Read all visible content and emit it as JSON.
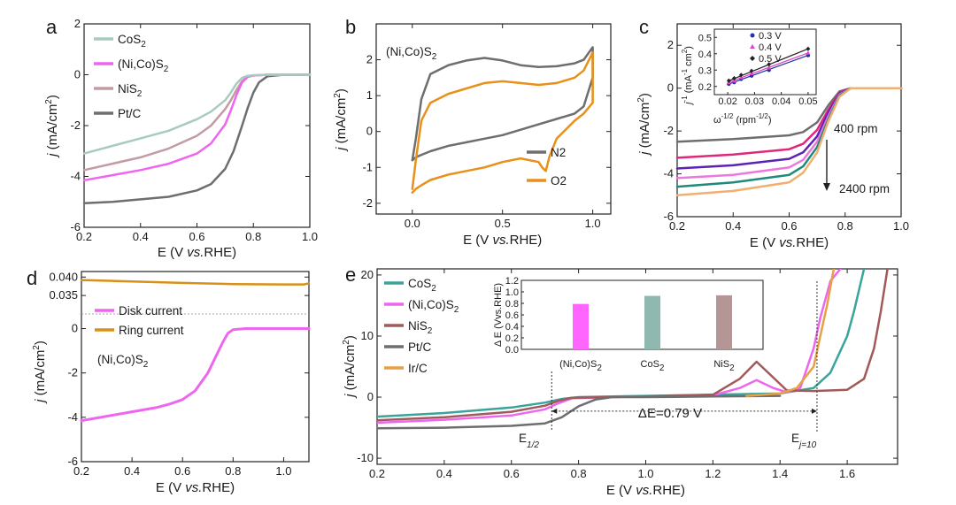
{
  "chart_data": [
    {
      "panel": "a",
      "type": "line",
      "xlabel": "E (V vs.RHE)",
      "ylabel": "j (mA/cm2)",
      "xlim": [
        0.2,
        1.0
      ],
      "ylim": [
        -6,
        2
      ],
      "xticks": [
        "0.2",
        "0.4",
        "0.6",
        "0.8",
        "1.0"
      ],
      "yticks": [
        "-6",
        "-4",
        "-2",
        "0",
        "2"
      ],
      "legend_position": "top-left",
      "series": [
        {
          "name": "CoS2",
          "color": "#a9cbbf",
          "x": [
            0.2,
            0.3,
            0.4,
            0.5,
            0.6,
            0.65,
            0.7,
            0.72,
            0.74,
            0.76,
            0.78,
            0.8,
            0.85,
            0.9,
            1.0
          ],
          "y": [
            -3.1,
            -2.8,
            -2.5,
            -2.2,
            -1.75,
            -1.45,
            -1.0,
            -0.7,
            -0.35,
            -0.12,
            -0.04,
            -0.02,
            0,
            0,
            0
          ]
        },
        {
          "name": "(Ni,Co)S2",
          "color": "#ee66ee",
          "x": [
            0.2,
            0.3,
            0.4,
            0.5,
            0.6,
            0.65,
            0.7,
            0.72,
            0.74,
            0.76,
            0.78,
            0.8,
            0.85,
            0.9,
            1.0
          ],
          "y": [
            -4.15,
            -3.95,
            -3.75,
            -3.5,
            -3.1,
            -2.7,
            -1.95,
            -1.4,
            -0.8,
            -0.3,
            -0.08,
            -0.03,
            0,
            0,
            0
          ]
        },
        {
          "name": "NiS2",
          "color": "#c49ba3",
          "x": [
            0.2,
            0.3,
            0.4,
            0.5,
            0.6,
            0.65,
            0.7,
            0.72,
            0.74,
            0.76,
            0.78,
            0.8,
            0.85,
            0.9,
            1.0
          ],
          "y": [
            -3.75,
            -3.5,
            -3.25,
            -2.9,
            -2.4,
            -2.0,
            -1.35,
            -1.0,
            -0.6,
            -0.25,
            -0.08,
            -0.03,
            0,
            0,
            0
          ]
        },
        {
          "name": "Pt/C",
          "color": "#6e6e6e",
          "x": [
            0.2,
            0.3,
            0.4,
            0.5,
            0.6,
            0.65,
            0.7,
            0.73,
            0.76,
            0.78,
            0.8,
            0.82,
            0.85,
            0.9,
            0.95,
            1.0
          ],
          "y": [
            -5.05,
            -5.0,
            -4.9,
            -4.8,
            -4.55,
            -4.3,
            -3.7,
            -3.0,
            -2.0,
            -1.3,
            -0.7,
            -0.3,
            -0.06,
            -0.01,
            0,
            0
          ]
        }
      ]
    },
    {
      "panel": "b",
      "type": "line",
      "annotation": "(Ni,Co)S2",
      "xlabel": "E (V vs.RHE)",
      "ylabel": "j (mA/cm2)",
      "xlim": [
        -0.2,
        1.1
      ],
      "ylim": [
        -2.3,
        3
      ],
      "xticks": [
        "0.0",
        "0.5",
        "1.0"
      ],
      "yticks": [
        "-2",
        "-1",
        "0",
        "1",
        "2"
      ],
      "legend_position": "bottom-right",
      "series": [
        {
          "name": "N2",
          "color": "#6e6e6e",
          "x": [
            0.0,
            0.02,
            0.05,
            0.1,
            0.2,
            0.3,
            0.4,
            0.5,
            0.6,
            0.7,
            0.8,
            0.9,
            0.95,
            1.0,
            1.0,
            0.95,
            0.9,
            0.8,
            0.7,
            0.6,
            0.5,
            0.4,
            0.3,
            0.2,
            0.1,
            0.05,
            0.02,
            0.0
          ],
          "y": [
            -0.8,
            -0.2,
            0.9,
            1.6,
            1.85,
            1.98,
            2.05,
            1.98,
            1.85,
            1.8,
            1.82,
            1.9,
            2.0,
            2.35,
            1.5,
            0.7,
            0.5,
            0.35,
            0.2,
            0.05,
            -0.1,
            -0.2,
            -0.3,
            -0.4,
            -0.55,
            -0.65,
            -0.72,
            -0.8
          ]
        },
        {
          "name": "O2",
          "color": "#e8901a",
          "x": [
            0.0,
            0.02,
            0.05,
            0.1,
            0.2,
            0.3,
            0.4,
            0.5,
            0.6,
            0.7,
            0.8,
            0.9,
            0.95,
            1.0,
            1.0,
            0.95,
            0.9,
            0.8,
            0.76,
            0.74,
            0.72,
            0.7,
            0.6,
            0.5,
            0.4,
            0.3,
            0.2,
            0.1,
            0.05,
            0.02,
            0.0
          ],
          "y": [
            -1.6,
            -0.8,
            0.3,
            0.8,
            1.05,
            1.2,
            1.35,
            1.4,
            1.35,
            1.3,
            1.35,
            1.5,
            1.7,
            2.2,
            0.8,
            0.5,
            0.3,
            -0.2,
            -0.7,
            -1.1,
            -1.0,
            -0.85,
            -0.75,
            -0.85,
            -1.0,
            -1.1,
            -1.2,
            -1.35,
            -1.5,
            -1.6,
            -1.7
          ]
        }
      ]
    },
    {
      "panel": "c",
      "type": "line",
      "xlabel": "E (V vs.RHE)",
      "ylabel": "j (mA/cm2)",
      "xlim": [
        0.2,
        1.0
      ],
      "ylim": [
        -6,
        3
      ],
      "xticks": [
        "0.2",
        "0.4",
        "0.6",
        "0.8",
        "1.0"
      ],
      "yticks": [
        "-6",
        "-4",
        "-2",
        "0",
        "2"
      ],
      "annotations": [
        "400 rpm",
        "2400 rpm"
      ],
      "series": [
        {
          "color": "#6e6e6e",
          "x": [
            0.2,
            0.4,
            0.6,
            0.65,
            0.7,
            0.74,
            0.78,
            0.82,
            0.9,
            1.0
          ],
          "y": [
            -2.5,
            -2.38,
            -2.2,
            -2.05,
            -1.6,
            -0.8,
            -0.15,
            0,
            0,
            0
          ]
        },
        {
          "color": "#e0287a",
          "x": [
            0.2,
            0.4,
            0.6,
            0.65,
            0.7,
            0.74,
            0.78,
            0.82,
            0.9,
            1.0
          ],
          "y": [
            -3.25,
            -3.1,
            -2.85,
            -2.6,
            -1.95,
            -1.0,
            -0.2,
            0,
            0,
            0
          ]
        },
        {
          "color": "#5a22b5",
          "x": [
            0.2,
            0.4,
            0.6,
            0.65,
            0.7,
            0.74,
            0.78,
            0.82,
            0.9,
            1.0
          ],
          "y": [
            -3.75,
            -3.6,
            -3.3,
            -3.0,
            -2.25,
            -1.15,
            -0.25,
            0,
            0,
            0
          ]
        },
        {
          "color": "#ee77dd",
          "x": [
            0.2,
            0.4,
            0.6,
            0.65,
            0.7,
            0.74,
            0.78,
            0.82,
            0.9,
            1.0
          ],
          "y": [
            -4.2,
            -4.05,
            -3.7,
            -3.35,
            -2.5,
            -1.3,
            -0.3,
            0,
            0,
            0
          ]
        },
        {
          "color": "#1e8a7a",
          "x": [
            0.2,
            0.4,
            0.6,
            0.65,
            0.7,
            0.74,
            0.78,
            0.82,
            0.9,
            1.0
          ],
          "y": [
            -4.6,
            -4.4,
            -4.05,
            -3.65,
            -2.75,
            -1.45,
            -0.35,
            0,
            0,
            0
          ]
        },
        {
          "color": "#f0b070",
          "x": [
            0.2,
            0.4,
            0.6,
            0.65,
            0.7,
            0.74,
            0.78,
            0.82,
            0.9,
            1.0
          ],
          "y": [
            -5.0,
            -4.8,
            -4.4,
            -3.95,
            -3.0,
            -1.55,
            -0.4,
            0,
            0,
            0
          ]
        }
      ],
      "inset": {
        "type": "scatter",
        "xlabel": "ω^-1/2 (rpm^-1/2)",
        "ylabel": "j^-1 (mA^-1 cm2)",
        "xlim": [
          0.015,
          0.053
        ],
        "ylim": [
          0.15,
          0.55
        ],
        "xticks": [
          "0.02",
          "0.03",
          "0.04",
          "0.05"
        ],
        "yticks": [
          "0.2",
          "0.3",
          "0.4",
          "0.5"
        ],
        "series": [
          {
            "name": "0.3 V",
            "color": "#2233aa",
            "x": [
              0.0204,
              0.0224,
              0.025,
              0.0289,
              0.0354,
              0.05
            ],
            "y": [
              0.215,
              0.225,
              0.245,
              0.265,
              0.3,
              0.39
            ]
          },
          {
            "name": "0.4 V",
            "color": "#dd44cc",
            "x": [
              0.0204,
              0.0224,
              0.025,
              0.0289,
              0.0354,
              0.05
            ],
            "y": [
              0.225,
              0.235,
              0.255,
              0.28,
              0.315,
              0.405
            ]
          },
          {
            "name": "0.5 V",
            "color": "#222222",
            "x": [
              0.0204,
              0.0224,
              0.025,
              0.0289,
              0.0354,
              0.05
            ],
            "y": [
              0.235,
              0.25,
              0.27,
              0.295,
              0.335,
              0.43
            ]
          }
        ]
      }
    },
    {
      "panel": "d",
      "type": "line",
      "annotation": "(Ni,Co)S2",
      "xlabel": "E (V vs.RHE)",
      "ylabel": "j (mA/cm2)",
      "xlim": [
        0.2,
        1.1
      ],
      "ring_axis": {
        "ylim": [
          0.03,
          0.0415
        ],
        "yticks": [
          "0.035",
          "0.040"
        ]
      },
      "disk_axis": {
        "ylim": [
          -6,
          0.5
        ],
        "yticks": [
          "-6",
          "-4",
          "-2",
          "0"
        ]
      },
      "xticks": [
        "0.2",
        "0.4",
        "0.6",
        "0.8",
        "1.0"
      ],
      "legend_position": "top-left",
      "series": [
        {
          "name": "Disk current",
          "color": "#ee66ee",
          "x": [
            0.2,
            0.3,
            0.4,
            0.5,
            0.55,
            0.6,
            0.65,
            0.7,
            0.73,
            0.76,
            0.78,
            0.8,
            0.85,
            0.9,
            1.0,
            1.1
          ],
          "y": [
            -4.15,
            -3.95,
            -3.75,
            -3.55,
            -3.4,
            -3.2,
            -2.8,
            -2.0,
            -1.3,
            -0.6,
            -0.2,
            -0.05,
            0,
            0,
            0,
            0
          ]
        },
        {
          "name": "Ring current",
          "color": "#d89018",
          "x": [
            0.2,
            0.4,
            0.6,
            0.8,
            1.0,
            1.08,
            1.1
          ],
          "y": [
            0.0392,
            0.0388,
            0.0384,
            0.0381,
            0.038,
            0.038,
            0.0383
          ]
        }
      ]
    },
    {
      "panel": "e",
      "type": "line",
      "xlabel": "E (V vs.RHE)",
      "ylabel": "j (mA/cm2)",
      "xlim": [
        0.2,
        1.75
      ],
      "ylim": [
        -11,
        21
      ],
      "xticks": [
        "0.2",
        "0.4",
        "0.6",
        "0.8",
        "1.0",
        "1.2",
        "1.4",
        "1.6"
      ],
      "yticks": [
        "-10",
        "0",
        "10",
        "20"
      ],
      "legend_position": "top-left",
      "annotations": [
        "E1/2",
        "Ej=10",
        "ΔE=0.79 V"
      ],
      "series": [
        {
          "name": "CoS2",
          "color": "#3aa39a",
          "x": [
            0.2,
            0.4,
            0.6,
            0.7,
            0.75,
            0.8,
            0.9,
            1.0,
            1.2,
            1.4,
            1.5,
            1.55,
            1.6,
            1.62,
            1.65
          ],
          "y": [
            -3.2,
            -2.6,
            -1.7,
            -0.9,
            -0.3,
            0,
            0.1,
            0.2,
            0.4,
            0.6,
            1.5,
            4,
            10,
            14,
            21
          ]
        },
        {
          "name": "(Ni,Co)S2",
          "color": "#ee66ee",
          "x": [
            0.2,
            0.4,
            0.6,
            0.7,
            0.74,
            0.78,
            0.9,
            1.0,
            1.2,
            1.28,
            1.33,
            1.38,
            1.42,
            1.46,
            1.5,
            1.52,
            1.55,
            1.58
          ],
          "y": [
            -4.2,
            -3.7,
            -3.0,
            -2.0,
            -1.0,
            -0.2,
            0,
            0.1,
            0.3,
            1.5,
            2.8,
            1.5,
            0.8,
            1.5,
            8,
            13,
            19,
            21
          ]
        },
        {
          "name": "NiS2",
          "color": "#a05a5a",
          "x": [
            0.2,
            0.4,
            0.6,
            0.7,
            0.74,
            0.78,
            0.9,
            1.0,
            1.2,
            1.28,
            1.33,
            1.38,
            1.42,
            1.5,
            1.6,
            1.65,
            1.68,
            1.7,
            1.72
          ],
          "y": [
            -3.8,
            -3.3,
            -2.4,
            -1.4,
            -0.6,
            -0.1,
            0,
            0.1,
            0.4,
            3,
            5.8,
            3.2,
            1.1,
            1.0,
            1.2,
            3,
            8,
            14,
            21
          ]
        },
        {
          "name": "Pt/C",
          "color": "#6e6e6e",
          "x": [
            0.2,
            0.4,
            0.6,
            0.7,
            0.75,
            0.8,
            0.85,
            0.9,
            1.0,
            1.2,
            1.4
          ],
          "y": [
            -5.1,
            -5.0,
            -4.7,
            -4.3,
            -3.3,
            -1.5,
            -0.4,
            0,
            0,
            0.1,
            0.2
          ]
        },
        {
          "name": "Ir/C",
          "color": "#e8a045",
          "x": [
            1.3,
            1.4,
            1.45,
            1.5,
            1.52,
            1.54,
            1.56
          ],
          "y": [
            0.2,
            0.6,
            1.5,
            5,
            10,
            15,
            21
          ]
        }
      ],
      "inset": {
        "type": "bar",
        "ylabel": "Δ E (Vvs.RHE)",
        "ylim": [
          0,
          1.2
        ],
        "yticks": [
          "0.0",
          "0.2",
          "0.4",
          "0.6",
          "0.8",
          "1.0",
          "1.2"
        ],
        "categories": [
          "(Ni,Co)S2",
          "CoS2",
          "NiS2"
        ],
        "values": [
          0.79,
          0.93,
          0.94
        ],
        "colors": [
          "#ff66ff",
          "#8fb8b0",
          "#b59696"
        ]
      }
    }
  ]
}
